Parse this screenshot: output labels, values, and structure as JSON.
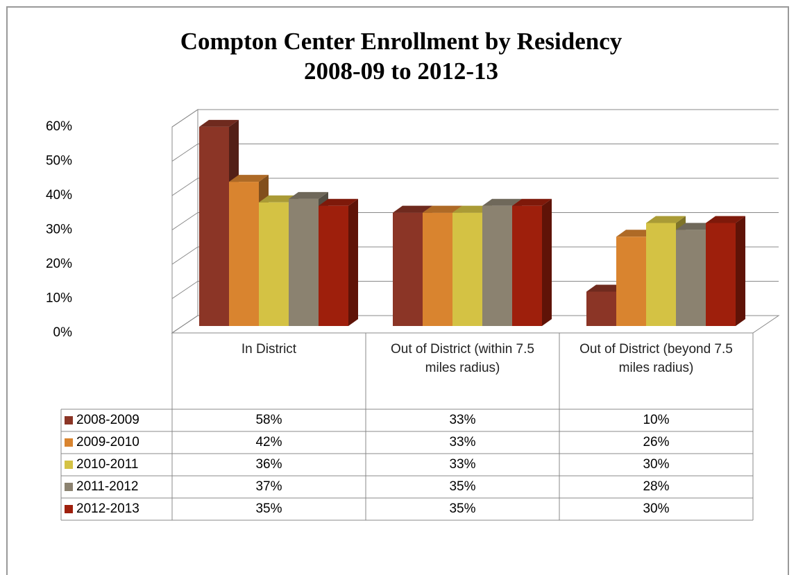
{
  "chart_data": {
    "type": "bar3d",
    "title": "Compton Center Enrollment by Residency\n2008-09 to 2012-13",
    "categories": [
      "In District",
      "Out of District (within 7.5 miles radius)",
      "Out of District (beyond 7.5 miles radius)"
    ],
    "series": [
      {
        "name": "2008-2009",
        "color": "#8b3526",
        "values": [
          58,
          33,
          10
        ],
        "value_labels": [
          "58%",
          "33%",
          "10%"
        ]
      },
      {
        "name": "2009-2010",
        "color": "#d9842f",
        "values": [
          42,
          33,
          26
        ],
        "value_labels": [
          "42%",
          "33%",
          "26%"
        ]
      },
      {
        "name": "2010-2011",
        "color": "#d4c244",
        "values": [
          36,
          33,
          30
        ],
        "value_labels": [
          "36%",
          "33%",
          "30%"
        ]
      },
      {
        "name": "2011-2012",
        "color": "#8b8270",
        "values": [
          37,
          35,
          28
        ],
        "value_labels": [
          "37%",
          "35%",
          "28%"
        ]
      },
      {
        "name": "2012-2013",
        "color": "#9e1f0c",
        "values": [
          35,
          35,
          30
        ],
        "value_labels": [
          "35%",
          "35%",
          "30%"
        ]
      }
    ],
    "ylim": [
      0,
      60
    ],
    "yticks": [
      {
        "value": 0,
        "label": "0%"
      },
      {
        "value": 10,
        "label": "10%"
      },
      {
        "value": 20,
        "label": "20%"
      },
      {
        "value": 30,
        "label": "30%"
      },
      {
        "value": 40,
        "label": "40%"
      },
      {
        "value": 50,
        "label": "50%"
      },
      {
        "value": 60,
        "label": "60%"
      }
    ],
    "grid": true
  }
}
